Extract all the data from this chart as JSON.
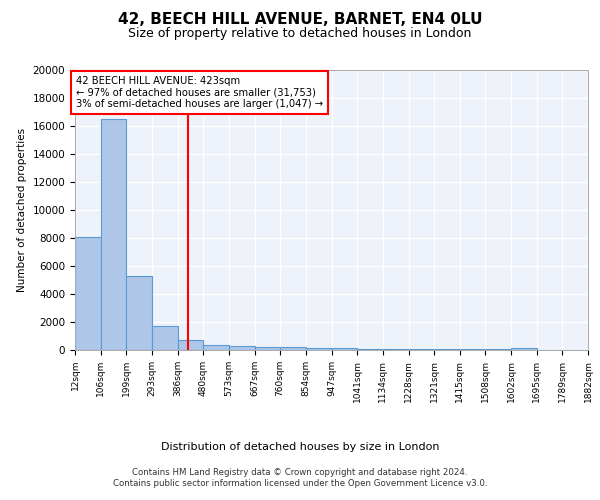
{
  "title1": "42, BEECH HILL AVENUE, BARNET, EN4 0LU",
  "title2": "Size of property relative to detached houses in London",
  "xlabel": "Distribution of detached houses by size in London",
  "ylabel": "Number of detached properties",
  "bar_edges": [
    12,
    106,
    199,
    293,
    386,
    480,
    573,
    667,
    760,
    854,
    947,
    1041,
    1134,
    1228,
    1321,
    1415,
    1508,
    1602,
    1695,
    1789,
    1882
  ],
  "bar_heights": [
    8100,
    16500,
    5300,
    1750,
    750,
    350,
    300,
    250,
    200,
    150,
    130,
    100,
    90,
    80,
    70,
    60,
    50,
    140,
    0,
    0
  ],
  "bar_color": "#aec6e8",
  "bar_edge_color": "#5b9bd5",
  "vline_x": 423,
  "vline_color": "red",
  "annotation_text": "42 BEECH HILL AVENUE: 423sqm\n← 97% of detached houses are smaller (31,753)\n3% of semi-detached houses are larger (1,047) →",
  "annotation_box_color": "white",
  "annotation_box_edge": "red",
  "footnote": "Contains HM Land Registry data © Crown copyright and database right 2024.\nContains public sector information licensed under the Open Government Licence v3.0.",
  "tick_labels": [
    "12sqm",
    "106sqm",
    "199sqm",
    "293sqm",
    "386sqm",
    "480sqm",
    "573sqm",
    "667sqm",
    "760sqm",
    "854sqm",
    "947sqm",
    "1041sqm",
    "1134sqm",
    "1228sqm",
    "1321sqm",
    "1415sqm",
    "1508sqm",
    "1602sqm",
    "1695sqm",
    "1789sqm",
    "1882sqm"
  ],
  "ylim": [
    0,
    20000
  ],
  "yticks": [
    0,
    2000,
    4000,
    6000,
    8000,
    10000,
    12000,
    14000,
    16000,
    18000,
    20000
  ],
  "bg_color": "#eef2fa",
  "grid_color": "white",
  "title1_fontsize": 11,
  "title2_fontsize": 9
}
